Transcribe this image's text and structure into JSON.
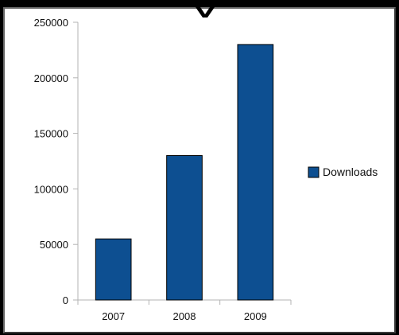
{
  "colors": {
    "bar": "#0d4f91",
    "bar_stroke": "#000000",
    "axis": "#b3b3b3",
    "grid": "#b3b3b3",
    "text": "#111111",
    "outer_frame": "#000000",
    "panel": "#ffffff"
  },
  "chart_data": {
    "type": "bar",
    "title": "",
    "xlabel": "",
    "ylabel": "",
    "categories": [
      "2007",
      "2008",
      "2009"
    ],
    "series": [
      {
        "name": "Downloads",
        "values": [
          55000,
          130000,
          230000
        ]
      }
    ],
    "ylim": [
      0,
      250000
    ],
    "yticks": [
      0,
      50000,
      100000,
      150000,
      200000,
      250000
    ],
    "ytick_labels": [
      "0",
      "50000",
      "100000",
      "150000",
      "200000",
      "250000"
    ],
    "grid": false,
    "legend_position": "right"
  }
}
